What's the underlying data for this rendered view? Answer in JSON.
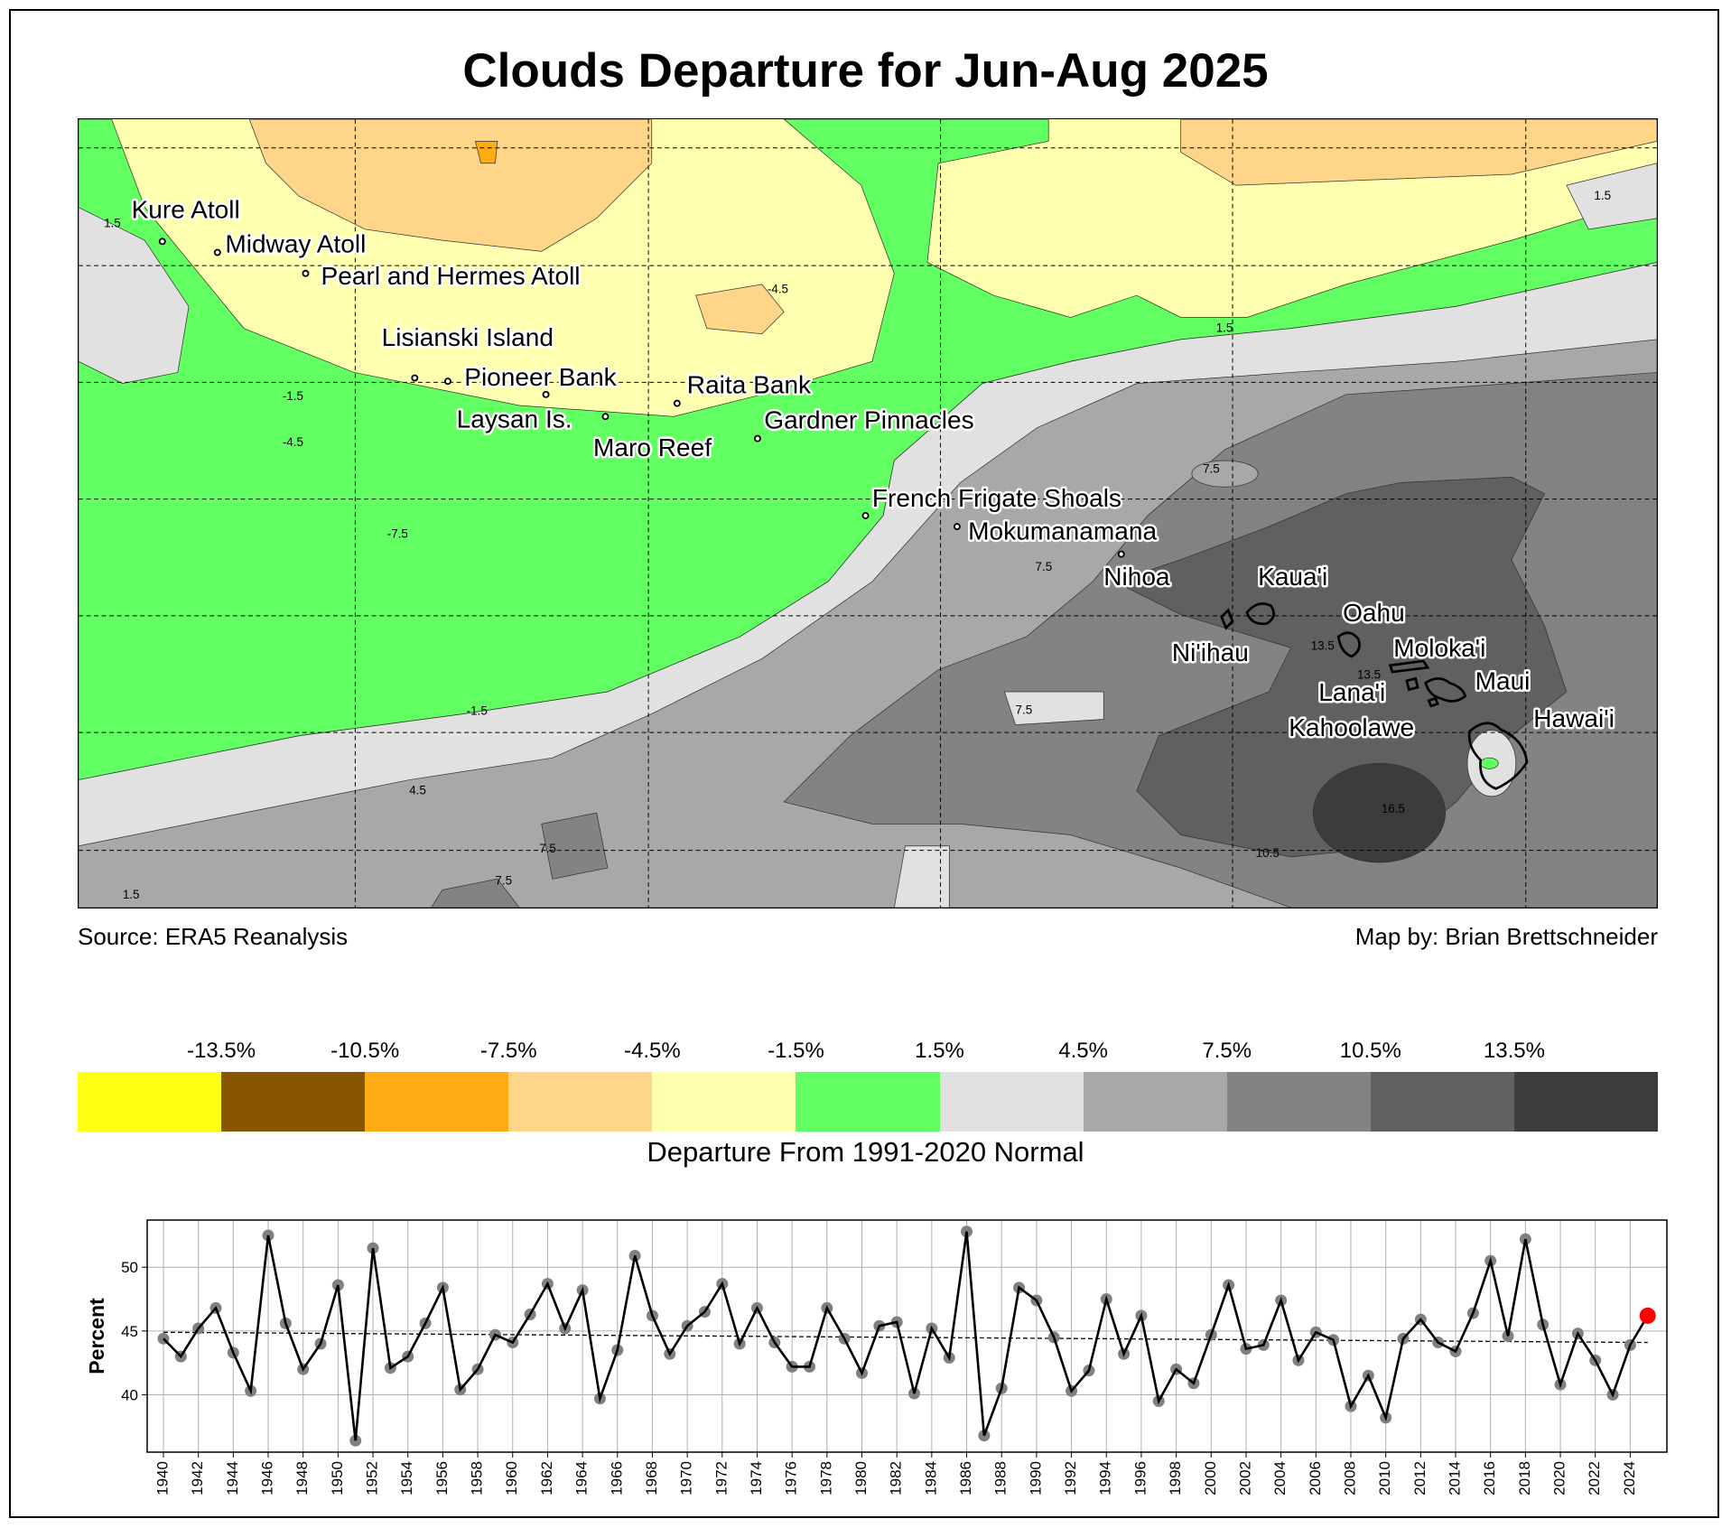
{
  "title": "Clouds Departure for Jun-Aug 2025",
  "source": "Source: ERA5 Reanalysis",
  "credit": "Map by: Brian Brettschneider",
  "map": {
    "places": [
      {
        "name": "Kure Atoll"
      },
      {
        "name": "Midway Atoll"
      },
      {
        "name": "Pearl and Hermes Atoll"
      },
      {
        "name": "Lisianski Island"
      },
      {
        "name": "Pioneer Bank"
      },
      {
        "name": "Laysan Is."
      },
      {
        "name": "Raita Bank"
      },
      {
        "name": "Maro Reef"
      },
      {
        "name": "Gardner Pinnacles"
      },
      {
        "name": "French Frigate Shoals"
      },
      {
        "name": "Mokumanamana"
      },
      {
        "name": "Nihoa"
      },
      {
        "name": "Kaua'i"
      },
      {
        "name": "Ni'ihau"
      },
      {
        "name": "Oahu"
      },
      {
        "name": "Moloka'i"
      },
      {
        "name": "Maui"
      },
      {
        "name": "Lana'i"
      },
      {
        "name": "Kahoolawe"
      },
      {
        "name": "Hawai'i"
      }
    ],
    "contour_labels": [
      "1.5",
      "-1.5",
      "-4.5",
      "-7.5",
      "-4.5",
      "1.5",
      "1.5",
      "7.5",
      "7.5",
      "7.5",
      "-1.5",
      "4.5",
      "7.5",
      "7.5",
      "1.5",
      "10.5",
      "16.5",
      "13.5",
      "13.5"
    ]
  },
  "colorbar": {
    "title": "Departure From 1991-2020 Normal",
    "labels": [
      "-13.5%",
      "-10.5%",
      "-7.5%",
      "-4.5%",
      "-1.5%",
      "1.5%",
      "4.5%",
      "7.5%",
      "10.5%",
      "13.5%"
    ],
    "colors": [
      "#ffff14",
      "#875400",
      "#ffab14",
      "#ffd58a",
      "#ffffb0",
      "#61ff61",
      "#e1e1e1",
      "#a8a8a8",
      "#838383",
      "#606060",
      "#3c3c3c"
    ]
  },
  "chart_data": {
    "type": "line",
    "title": "",
    "xlabel": "",
    "ylabel": "Percent",
    "xlim": [
      1939.07,
      2026.1
    ],
    "ylim": [
      35.5,
      53.7
    ],
    "yticks": [
      40,
      45,
      50
    ],
    "grid": true,
    "x": [
      1940,
      1941,
      1942,
      1943,
      1944,
      1945,
      1946,
      1947,
      1948,
      1949,
      1950,
      1951,
      1952,
      1953,
      1954,
      1955,
      1956,
      1957,
      1958,
      1959,
      1960,
      1961,
      1962,
      1963,
      1964,
      1965,
      1966,
      1967,
      1968,
      1969,
      1970,
      1971,
      1972,
      1973,
      1974,
      1975,
      1976,
      1977,
      1978,
      1979,
      1980,
      1981,
      1982,
      1983,
      1984,
      1985,
      1986,
      1987,
      1988,
      1989,
      1990,
      1991,
      1992,
      1993,
      1994,
      1995,
      1996,
      1997,
      1998,
      1999,
      2000,
      2001,
      2002,
      2003,
      2004,
      2005,
      2006,
      2007,
      2008,
      2009,
      2010,
      2011,
      2012,
      2013,
      2014,
      2015,
      2016,
      2017,
      2018,
      2019,
      2020,
      2021,
      2022,
      2023,
      2024,
      2025
    ],
    "series": [
      {
        "name": "Clouds",
        "values": [
          44.4,
          43.0,
          45.2,
          46.8,
          43.3,
          40.3,
          52.5,
          45.6,
          42.0,
          44.0,
          48.6,
          36.4,
          51.5,
          42.1,
          43.0,
          45.6,
          48.4,
          40.4,
          42.0,
          44.7,
          44.1,
          46.3,
          48.7,
          45.2,
          48.2,
          39.7,
          43.5,
          50.9,
          46.2,
          43.2,
          45.4,
          46.5,
          48.7,
          44.0,
          46.8,
          44.1,
          42.2,
          42.2,
          46.8,
          44.4,
          41.7,
          45.4,
          45.7,
          40.1,
          45.2,
          42.9,
          52.8,
          36.8,
          40.5,
          48.4,
          47.4,
          44.5,
          40.3,
          41.9,
          47.5,
          43.2,
          46.2,
          39.5,
          42.0,
          40.9,
          44.7,
          48.6,
          43.6,
          43.9,
          47.4,
          42.7,
          44.9,
          44.3,
          39.1,
          41.5,
          38.2,
          44.4,
          45.9,
          44.1,
          43.4,
          46.4,
          50.5,
          44.6,
          52.2,
          45.5,
          40.8,
          44.8,
          42.7,
          40.0,
          43.9,
          46.2
        ]
      },
      {
        "name": "Trend",
        "x": [
          1940,
          2025
        ],
        "values": [
          44.9,
          44.1
        ]
      }
    ],
    "highlight": {
      "x": 2025,
      "value": 46.2,
      "color": "#ff0000"
    }
  }
}
